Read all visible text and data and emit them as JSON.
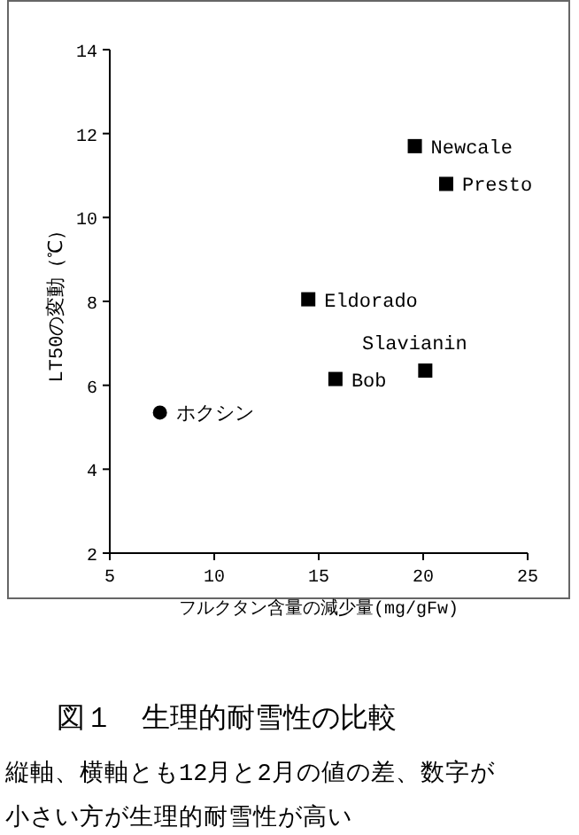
{
  "chart_data": {
    "type": "scatter",
    "title": "図１　生理的耐雪性の比較",
    "xlabel": "フルクタン含量の減少量(mg/gFw)",
    "ylabel": "LT50の変動（℃）",
    "xlim": [
      5,
      25
    ],
    "xticks": [
      5,
      10,
      15,
      20,
      25
    ],
    "ylim": [
      2,
      14
    ],
    "yticks": [
      2,
      4,
      6,
      8,
      10,
      12,
      14
    ],
    "grid": false,
    "series": [
      {
        "color": "#000000",
        "marker": "square",
        "x": [
          19.6,
          21.1,
          14.5,
          15.8,
          20.1
        ],
        "values": [
          11.7,
          10.8,
          8.05,
          6.15,
          6.35
        ]
      },
      {
        "color": "#000000",
        "marker": "circle",
        "x": [
          7.4
        ],
        "values": [
          5.35
        ]
      }
    ],
    "annotations": [
      {
        "text": "Newcale",
        "x": 19.6,
        "y": 11.7
      },
      {
        "text": "Presto",
        "x": 21.1,
        "y": 10.8
      },
      {
        "text": "Eldorado",
        "x": 14.5,
        "y": 8.05
      },
      {
        "text": "Bob",
        "x": 15.8,
        "y": 6.15
      },
      {
        "text": "Slavianin",
        "x": 20.1,
        "y": 6.35
      },
      {
        "text": "ホクシン",
        "x": 7.4,
        "y": 5.35
      },
      "縦軸、横軸とも12月と2月の値の差、数字が",
      "小さい方が生理的耐雪性が高い"
    ]
  }
}
